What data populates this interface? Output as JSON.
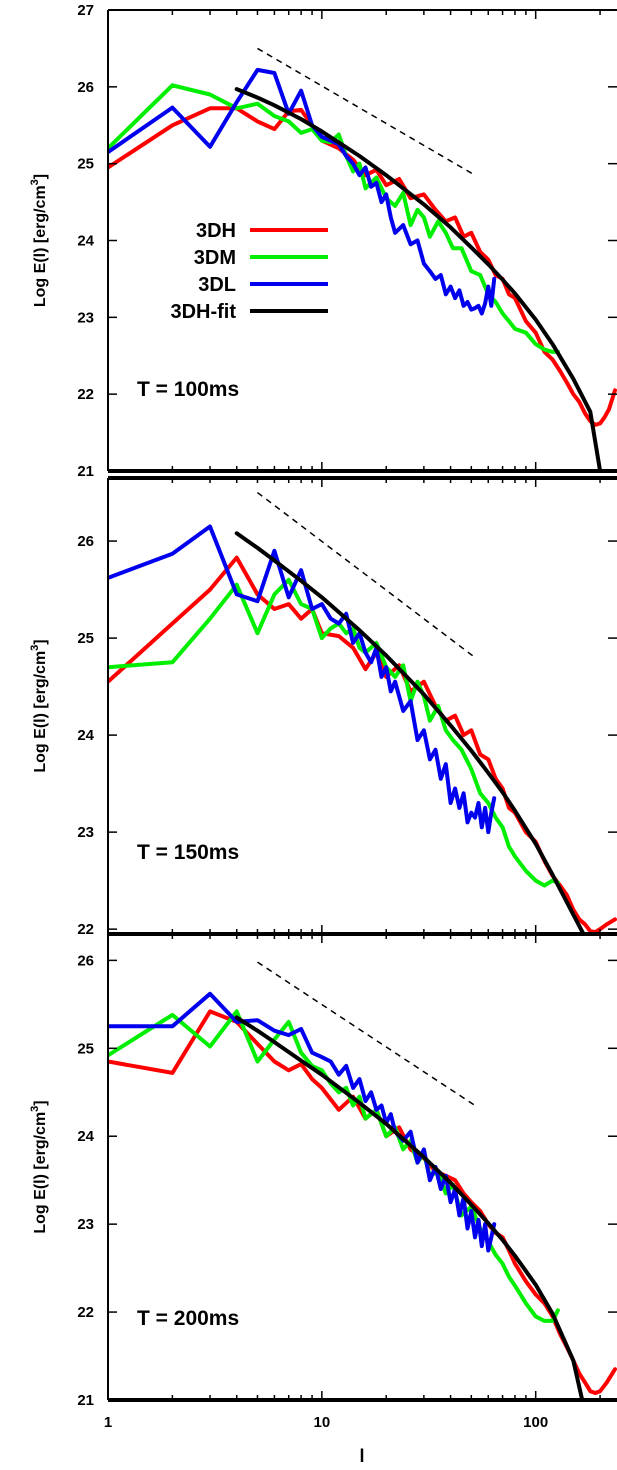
{
  "chart_data": [
    {
      "type": "line",
      "annotation": "T = 100ms",
      "xlabel": "",
      "ylabel": "Log E(l) [erg/cm^3]",
      "xscale": "log",
      "xlim": [
        1,
        240
      ],
      "ylim": [
        21,
        27
      ],
      "yticks": [
        "21",
        "22",
        "23",
        "24",
        "25",
        "26",
        "27"
      ],
      "xticks": [],
      "legend": {
        "placement": "center-left",
        "entries": [
          "3DH",
          "3DM",
          "3DL",
          "3DH-fit"
        ]
      },
      "reference_line": {
        "style": "dashed",
        "x": [
          5,
          52
        ],
        "y": [
          26.5,
          24.85
        ]
      },
      "series": [
        {
          "name": "3DH",
          "color": "#ff0000",
          "x": [
            1,
            2,
            3,
            4,
            5,
            6,
            7,
            8,
            9,
            10,
            12,
            14,
            16,
            18,
            20,
            23,
            26,
            30,
            34,
            38,
            42,
            46,
            50,
            55,
            60,
            65,
            70,
            75,
            80,
            90,
            100,
            110,
            120,
            130,
            140,
            150,
            160,
            170,
            180,
            190,
            200,
            210,
            220,
            235
          ],
          "y": [
            24.95,
            25.5,
            25.72,
            25.72,
            25.55,
            25.45,
            25.68,
            25.7,
            25.5,
            25.3,
            25.2,
            25.05,
            24.85,
            24.92,
            24.72,
            24.8,
            24.55,
            24.6,
            24.4,
            24.25,
            24.3,
            24.05,
            24.1,
            23.85,
            23.75,
            23.55,
            23.5,
            23.3,
            23.25,
            22.95,
            22.8,
            22.55,
            22.45,
            22.3,
            22.15,
            22.0,
            21.9,
            21.75,
            21.65,
            21.6,
            21.62,
            21.7,
            21.8,
            22.05
          ]
        },
        {
          "name": "3DM",
          "color": "#00ee00",
          "x": [
            1,
            2,
            3,
            4,
            5,
            6,
            7,
            8,
            9,
            10,
            11,
            12,
            13,
            14,
            15,
            16,
            18,
            20,
            22,
            24,
            26,
            28,
            30,
            32,
            35,
            38,
            41,
            45,
            50,
            55,
            60,
            65,
            70,
            75,
            80,
            90,
            100,
            110,
            120,
            127
          ],
          "y": [
            25.2,
            26.02,
            25.9,
            25.72,
            25.78,
            25.62,
            25.55,
            25.4,
            25.45,
            25.3,
            25.28,
            25.38,
            25.1,
            24.9,
            25.0,
            24.68,
            24.82,
            24.55,
            24.45,
            24.62,
            24.2,
            24.4,
            24.3,
            24.05,
            24.25,
            24.1,
            23.9,
            23.9,
            23.6,
            23.55,
            23.3,
            23.2,
            23.05,
            22.95,
            22.85,
            22.8,
            22.65,
            22.58,
            22.55,
            22.55
          ]
        },
        {
          "name": "3DL",
          "color": "#0000ee",
          "x": [
            1,
            2,
            3,
            4,
            5,
            6,
            7,
            8,
            9,
            10,
            11,
            12,
            13,
            14,
            15,
            16,
            17,
            18,
            19,
            20,
            21,
            22,
            24,
            26,
            28,
            30,
            32,
            34,
            36,
            38,
            40,
            42,
            44,
            46,
            48,
            50,
            52,
            54,
            56,
            58,
            60,
            62,
            64
          ],
          "y": [
            25.15,
            25.73,
            25.22,
            25.8,
            26.22,
            26.18,
            25.65,
            25.95,
            25.5,
            25.35,
            25.3,
            25.25,
            25.1,
            25.0,
            24.85,
            24.95,
            24.7,
            24.75,
            24.5,
            24.6,
            24.3,
            24.1,
            24.2,
            23.95,
            24.0,
            23.7,
            23.6,
            23.5,
            23.55,
            23.3,
            23.4,
            23.25,
            23.35,
            23.15,
            23.2,
            23.1,
            23.12,
            23.15,
            23.05,
            23.18,
            23.4,
            23.15,
            23.5
          ]
        },
        {
          "name": "3DH-fit",
          "color": "#000000",
          "x": [
            4,
            5,
            6,
            8,
            10,
            15,
            20,
            30,
            40,
            50,
            60,
            70,
            80,
            100,
            120,
            150,
            180,
            200
          ],
          "y": [
            25.97,
            25.86,
            25.76,
            25.58,
            25.42,
            25.1,
            24.85,
            24.47,
            24.17,
            23.91,
            23.69,
            23.49,
            23.31,
            22.97,
            22.65,
            22.2,
            21.77,
            21.0
          ]
        }
      ]
    },
    {
      "type": "line",
      "annotation": "T = 150ms",
      "xlabel": "",
      "ylabel": "Log E(l) [erg/cm^3]",
      "xscale": "log",
      "xlim": [
        1,
        240
      ],
      "ylim": [
        21.95,
        26.65
      ],
      "yticks": [
        "22",
        "23",
        "24",
        "25",
        "26"
      ],
      "xticks": [],
      "reference_line": {
        "style": "dashed",
        "x": [
          5,
          52
        ],
        "y": [
          26.5,
          24.8
        ]
      },
      "series": [
        {
          "name": "3DH",
          "color": "#ff0000",
          "x": [
            1,
            2,
            3,
            4,
            5,
            6,
            7,
            8,
            9,
            10,
            12,
            14,
            16,
            18,
            20,
            23,
            26,
            30,
            34,
            38,
            42,
            46,
            50,
            55,
            60,
            65,
            70,
            75,
            80,
            90,
            100,
            110,
            120,
            130,
            140,
            150,
            160,
            170,
            180,
            190,
            200,
            215,
            235
          ],
          "y": [
            24.55,
            25.15,
            25.5,
            25.83,
            25.45,
            25.3,
            25.35,
            25.2,
            25.3,
            25.05,
            25.02,
            24.9,
            24.68,
            24.85,
            24.6,
            24.72,
            24.45,
            24.55,
            24.3,
            24.15,
            24.2,
            24.0,
            24.05,
            23.8,
            23.75,
            23.55,
            23.45,
            23.25,
            23.2,
            23.0,
            22.9,
            22.7,
            22.55,
            22.45,
            22.35,
            22.2,
            22.1,
            22.05,
            21.98,
            21.97,
            22.0,
            22.05,
            22.1
          ]
        },
        {
          "name": "3DM",
          "color": "#00ee00",
          "x": [
            1,
            2,
            3,
            4,
            5,
            6,
            7,
            8,
            9,
            10,
            11,
            12,
            13,
            14,
            15,
            16,
            18,
            20,
            22,
            24,
            26,
            28,
            30,
            32,
            35,
            38,
            41,
            45,
            50,
            55,
            60,
            65,
            70,
            75,
            80,
            90,
            100,
            110,
            120,
            127
          ],
          "y": [
            24.7,
            24.75,
            25.2,
            25.55,
            25.05,
            25.45,
            25.6,
            25.35,
            25.3,
            25.0,
            25.1,
            25.15,
            25.05,
            25.1,
            24.9,
            24.85,
            24.95,
            24.7,
            24.6,
            24.72,
            24.35,
            24.55,
            24.4,
            24.15,
            24.3,
            24.05,
            23.95,
            23.85,
            23.65,
            23.4,
            23.3,
            23.15,
            23.05,
            22.85,
            22.75,
            22.6,
            22.5,
            22.45,
            22.5,
            22.48
          ]
        },
        {
          "name": "3DL",
          "color": "#0000ee",
          "x": [
            1,
            2,
            3,
            4,
            5,
            6,
            7,
            8,
            9,
            10,
            11,
            12,
            13,
            14,
            15,
            16,
            17,
            18,
            19,
            20,
            21,
            22,
            24,
            26,
            28,
            30,
            32,
            34,
            36,
            38,
            40,
            42,
            44,
            46,
            48,
            50,
            52,
            54,
            56,
            58,
            60,
            62,
            64
          ],
          "y": [
            25.62,
            25.87,
            26.15,
            25.45,
            25.38,
            25.9,
            25.42,
            25.7,
            25.3,
            25.35,
            25.2,
            25.15,
            25.25,
            24.95,
            25.05,
            24.85,
            24.75,
            24.9,
            24.6,
            24.7,
            24.45,
            24.55,
            24.25,
            24.35,
            23.95,
            24.05,
            23.75,
            23.85,
            23.55,
            23.7,
            23.3,
            23.45,
            23.25,
            23.4,
            23.1,
            23.2,
            23.15,
            23.3,
            23.05,
            23.25,
            23.0,
            23.2,
            23.35
          ]
        },
        {
          "name": "3DH-fit",
          "color": "#000000",
          "x": [
            4,
            5,
            6,
            8,
            10,
            15,
            20,
            30,
            40,
            50,
            60,
            70,
            80,
            100,
            120,
            150,
            170
          ],
          "y": [
            26.08,
            25.93,
            25.8,
            25.59,
            25.42,
            25.08,
            24.82,
            24.42,
            24.1,
            23.84,
            23.61,
            23.41,
            23.22,
            22.88,
            22.56,
            22.15,
            21.92
          ]
        }
      ]
    },
    {
      "type": "line",
      "annotation": "T = 200ms",
      "xlabel": "l",
      "ylabel": "Log E(l) [erg/cm^3]",
      "xscale": "log",
      "xlim": [
        1,
        240
      ],
      "ylim": [
        21,
        26.3
      ],
      "yticks": [
        "21",
        "22",
        "23",
        "24",
        "25",
        "26"
      ],
      "xticks": [
        "1",
        "10",
        "100"
      ],
      "reference_line": {
        "style": "dashed",
        "x": [
          5,
          52
        ],
        "y": [
          25.98,
          24.35
        ]
      },
      "series": [
        {
          "name": "3DH",
          "color": "#ff0000",
          "x": [
            1,
            2,
            3,
            4,
            5,
            6,
            7,
            8,
            9,
            10,
            12,
            14,
            16,
            18,
            20,
            23,
            26,
            30,
            34,
            38,
            42,
            46,
            50,
            55,
            60,
            65,
            70,
            75,
            80,
            90,
            100,
            110,
            120,
            130,
            140,
            150,
            160,
            170,
            180,
            190,
            200,
            215,
            235
          ],
          "y": [
            24.85,
            24.72,
            25.42,
            25.3,
            25.05,
            24.85,
            24.75,
            24.82,
            24.65,
            24.55,
            24.3,
            24.45,
            24.2,
            24.3,
            24.0,
            24.1,
            23.85,
            23.75,
            23.6,
            23.55,
            23.5,
            23.35,
            23.25,
            23.15,
            23.0,
            22.9,
            22.85,
            22.7,
            22.55,
            22.35,
            22.2,
            22.1,
            21.95,
            21.75,
            21.6,
            21.45,
            21.3,
            21.2,
            21.1,
            21.08,
            21.1,
            21.2,
            21.35
          ]
        },
        {
          "name": "3DM",
          "color": "#00ee00",
          "x": [
            1,
            2,
            3,
            4,
            5,
            6,
            7,
            8,
            9,
            10,
            11,
            12,
            13,
            14,
            15,
            16,
            18,
            20,
            22,
            24,
            26,
            28,
            30,
            32,
            35,
            38,
            41,
            45,
            50,
            55,
            60,
            65,
            70,
            75,
            80,
            90,
            100,
            110,
            120,
            127
          ],
          "y": [
            24.92,
            25.38,
            25.02,
            25.42,
            24.85,
            25.1,
            25.3,
            24.95,
            24.8,
            24.75,
            24.6,
            24.5,
            24.55,
            24.35,
            24.45,
            24.2,
            24.3,
            24.0,
            24.1,
            23.85,
            23.95,
            23.7,
            23.8,
            23.55,
            23.6,
            23.35,
            23.45,
            23.1,
            23.2,
            22.95,
            22.8,
            22.65,
            22.55,
            22.4,
            22.3,
            22.1,
            21.95,
            21.9,
            21.9,
            22.02
          ]
        },
        {
          "name": "3DL",
          "color": "#0000ee",
          "x": [
            1,
            2,
            3,
            4,
            5,
            6,
            7,
            8,
            9,
            10,
            11,
            12,
            13,
            14,
            15,
            16,
            17,
            18,
            19,
            20,
            21,
            22,
            24,
            26,
            28,
            30,
            32,
            34,
            36,
            38,
            40,
            42,
            44,
            46,
            48,
            50,
            52,
            54,
            56,
            58,
            60,
            62,
            64
          ],
          "y": [
            25.25,
            25.25,
            25.62,
            25.3,
            25.32,
            25.2,
            25.15,
            25.22,
            24.95,
            24.9,
            24.85,
            24.7,
            24.8,
            24.55,
            24.65,
            24.4,
            24.5,
            24.3,
            24.35,
            24.15,
            24.25,
            24.05,
            23.95,
            24.05,
            23.7,
            23.85,
            23.5,
            23.65,
            23.4,
            23.55,
            23.25,
            23.4,
            23.1,
            23.3,
            22.95,
            23.15,
            22.85,
            23.05,
            22.75,
            23.0,
            22.7,
            22.85,
            23.0
          ]
        },
        {
          "name": "3DH-fit",
          "color": "#000000",
          "x": [
            4,
            5,
            6,
            8,
            10,
            15,
            20,
            30,
            40,
            50,
            60,
            70,
            80,
            100,
            120,
            150,
            165
          ],
          "y": [
            25.35,
            25.2,
            25.07,
            24.86,
            24.7,
            24.38,
            24.14,
            23.76,
            23.47,
            23.22,
            23.01,
            22.82,
            22.64,
            22.31,
            21.98,
            21.45,
            21.0
          ]
        }
      ]
    }
  ]
}
